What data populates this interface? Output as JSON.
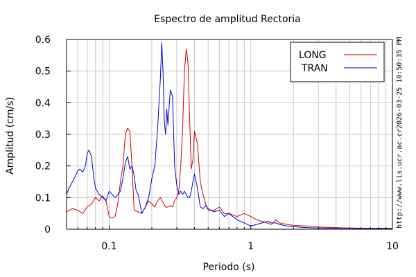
{
  "chart_data": {
    "type": "line",
    "title": "Espectro de amplitud Rectoria",
    "xlabel": "Periodo (s)",
    "ylabel": "Amplitud (cm/s)",
    "xscale": "log",
    "xlim": [
      0.05,
      10
    ],
    "ylim": [
      0,
      0.6
    ],
    "x_ticks": [
      0.1,
      1,
      10
    ],
    "x_tick_labels": [
      "0.1",
      "1",
      "10"
    ],
    "y_ticks": [
      0,
      0.1,
      0.2,
      0.3,
      0.4,
      0.5,
      0.6
    ],
    "y_tick_labels": [
      "0",
      "0.1",
      "0.2",
      "0.3",
      "0.4",
      "0.5",
      "0.6"
    ],
    "grid": true,
    "legend_position": "top-right",
    "series": [
      {
        "name": "LONG",
        "color": "#cc0000",
        "x": [
          0.05,
          0.055,
          0.06,
          0.065,
          0.07,
          0.075,
          0.08,
          0.085,
          0.09,
          0.095,
          0.1,
          0.105,
          0.11,
          0.115,
          0.12,
          0.125,
          0.13,
          0.135,
          0.14,
          0.145,
          0.15,
          0.16,
          0.17,
          0.18,
          0.19,
          0.2,
          0.21,
          0.22,
          0.23,
          0.24,
          0.25,
          0.26,
          0.27,
          0.28,
          0.29,
          0.3,
          0.31,
          0.32,
          0.33,
          0.34,
          0.35,
          0.36,
          0.37,
          0.38,
          0.39,
          0.4,
          0.42,
          0.44,
          0.46,
          0.48,
          0.5,
          0.55,
          0.6,
          0.65,
          0.7,
          0.8,
          0.9,
          1.0,
          1.1,
          1.2,
          1.3,
          1.4,
          1.5,
          1.6,
          1.8,
          2.0,
          2.5,
          3.0,
          4.0,
          5.0,
          6.0,
          8.0,
          10.0
        ],
        "y": [
          0.055,
          0.065,
          0.06,
          0.05,
          0.07,
          0.08,
          0.1,
          0.09,
          0.105,
          0.09,
          0.04,
          0.035,
          0.04,
          0.08,
          0.15,
          0.2,
          0.3,
          0.32,
          0.31,
          0.2,
          0.06,
          0.055,
          0.05,
          0.07,
          0.09,
          0.08,
          0.07,
          0.09,
          0.1,
          0.085,
          0.07,
          0.07,
          0.075,
          0.07,
          0.09,
          0.1,
          0.12,
          0.2,
          0.32,
          0.5,
          0.57,
          0.53,
          0.35,
          0.19,
          0.22,
          0.31,
          0.27,
          0.15,
          0.11,
          0.08,
          0.06,
          0.06,
          0.07,
          0.05,
          0.05,
          0.04,
          0.05,
          0.04,
          0.03,
          0.025,
          0.02,
          0.015,
          0.03,
          0.02,
          0.015,
          0.012,
          0.01,
          0.007,
          0.005,
          0.004,
          0.003,
          0.003,
          0.003
        ]
      },
      {
        "name": "TRAN",
        "color": "#0000cc",
        "x": [
          0.05,
          0.052,
          0.055,
          0.058,
          0.06,
          0.062,
          0.065,
          0.068,
          0.07,
          0.072,
          0.075,
          0.078,
          0.08,
          0.085,
          0.09,
          0.095,
          0.1,
          0.105,
          0.11,
          0.115,
          0.12,
          0.125,
          0.13,
          0.135,
          0.14,
          0.145,
          0.15,
          0.155,
          0.16,
          0.17,
          0.18,
          0.19,
          0.2,
          0.21,
          0.22,
          0.225,
          0.23,
          0.235,
          0.24,
          0.245,
          0.25,
          0.255,
          0.26,
          0.27,
          0.28,
          0.29,
          0.3,
          0.31,
          0.32,
          0.33,
          0.34,
          0.35,
          0.36,
          0.37,
          0.38,
          0.39,
          0.4,
          0.42,
          0.44,
          0.46,
          0.48,
          0.5,
          0.55,
          0.6,
          0.65,
          0.7,
          0.8,
          0.9,
          1.0,
          1.1,
          1.2,
          1.3,
          1.4,
          1.5,
          1.6,
          1.8,
          2.0,
          2.5,
          3.0,
          4.0,
          5.0,
          6.0,
          8.0,
          10.0
        ],
        "y": [
          0.11,
          0.13,
          0.15,
          0.17,
          0.185,
          0.19,
          0.18,
          0.2,
          0.24,
          0.25,
          0.23,
          0.16,
          0.13,
          0.11,
          0.1,
          0.09,
          0.12,
          0.11,
          0.1,
          0.11,
          0.12,
          0.16,
          0.21,
          0.23,
          0.19,
          0.2,
          0.17,
          0.12,
          0.11,
          0.05,
          0.07,
          0.1,
          0.16,
          0.2,
          0.32,
          0.4,
          0.48,
          0.59,
          0.5,
          0.34,
          0.3,
          0.38,
          0.33,
          0.44,
          0.42,
          0.2,
          0.14,
          0.11,
          0.12,
          0.11,
          0.12,
          0.11,
          0.1,
          0.1,
          0.12,
          0.15,
          0.175,
          0.13,
          0.07,
          0.065,
          0.075,
          0.065,
          0.055,
          0.06,
          0.04,
          0.05,
          0.03,
          0.02,
          0.01,
          0.015,
          0.02,
          0.025,
          0.02,
          0.02,
          0.015,
          0.01,
          0.008,
          0.005,
          0.004,
          0.003,
          0.003,
          0.002,
          0.002,
          0.002
        ]
      }
    ],
    "side_labels": {
      "timestamp": "2026-03-25 10:50:35 PM",
      "url": "http://www.lis.ucr.ac.cr"
    }
  }
}
